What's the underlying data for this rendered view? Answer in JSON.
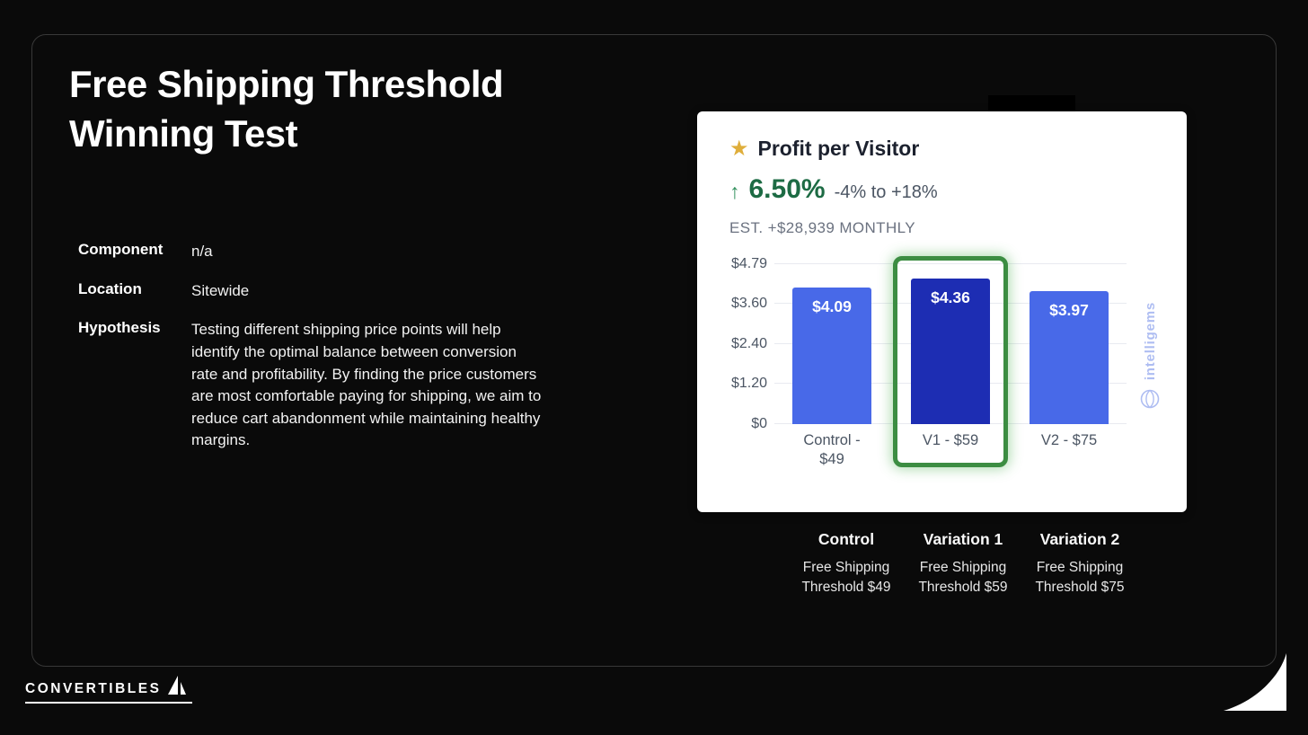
{
  "slide": {
    "title_line1": "Free Shipping Threshold",
    "title_line2": "Winning Test",
    "details": [
      {
        "label": "Component",
        "value": "n/a"
      },
      {
        "label": "Location",
        "value": "Sitewide"
      },
      {
        "label": "Hypothesis",
        "value": "Testing different shipping price points will help identify the optimal balance between conversion rate and profitability. By finding the price customers are most comfortable paying for shipping, we aim to reduce cart abandonment while maintaining healthy margins."
      }
    ]
  },
  "card": {
    "star_icon": "★",
    "title": "Profit per Visitor",
    "arrow_icon": "↑",
    "lift": "6.50%",
    "range": "-4% to +18%",
    "estimate": "EST. +$28,939 MONTHLY",
    "watermark": "intelligems"
  },
  "chart_data": {
    "type": "bar",
    "title": "Profit per Visitor",
    "categories": [
      "Control - $49",
      "V1 - $59",
      "V2 - $75"
    ],
    "values": [
      4.09,
      4.36,
      3.97
    ],
    "value_labels": [
      "$4.09",
      "$4.36",
      "$3.97"
    ],
    "y_ticks": [
      "$4.79",
      "$3.60",
      "$2.40",
      "$1.20",
      "$0"
    ],
    "y_tick_values": [
      4.79,
      3.6,
      2.4,
      1.2,
      0
    ],
    "ylim": [
      0,
      4.79
    ],
    "xlabel": "",
    "ylabel": "",
    "grid": true,
    "legend": "none",
    "highlighted_index": 1,
    "colors": {
      "bar": "#4869e8",
      "highlighted_bar": "#1d2db3",
      "highlight_border": "#3c8d42",
      "positive_green": "#1d6b44",
      "star_gold": "#dfae3b"
    }
  },
  "variants": [
    {
      "name": "Control",
      "desc_line1": "Free Shipping",
      "desc_line2": "Threshold $49"
    },
    {
      "name": "Variation 1",
      "desc_line1": "Free Shipping",
      "desc_line2": "Threshold $59"
    },
    {
      "name": "Variation 2",
      "desc_line1": "Free Shipping",
      "desc_line2": "Threshold $75"
    }
  ],
  "footer": {
    "brand": "CONVERTIBLES"
  }
}
